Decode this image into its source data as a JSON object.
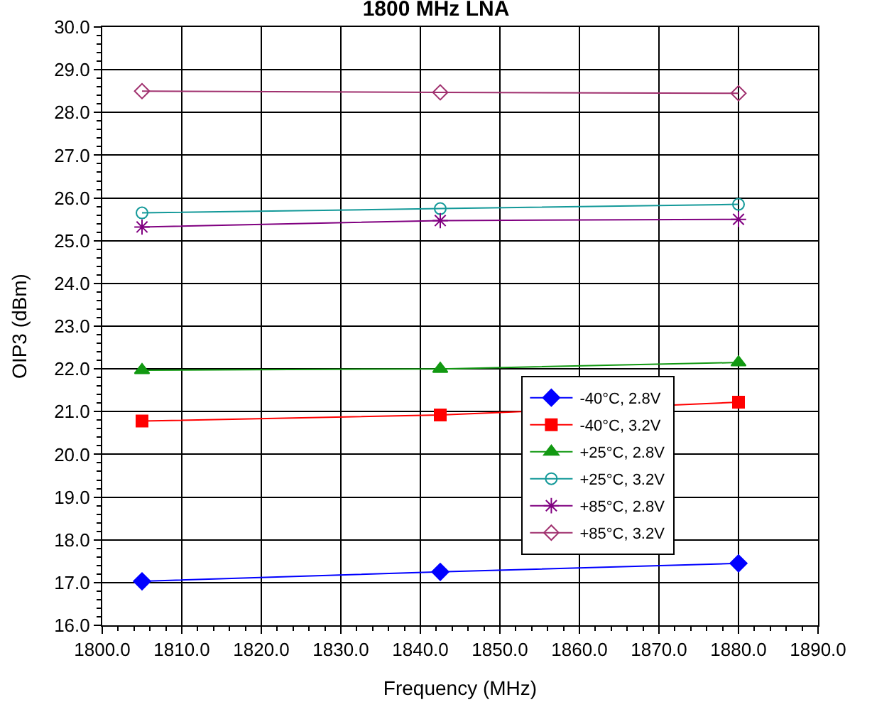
{
  "chart_data": {
    "type": "line",
    "title": "1800 MHz LNA",
    "xlabel": "Frequency (MHz)",
    "ylabel": "OIP3 (dBm)",
    "x": [
      1805,
      1842.5,
      1880
    ],
    "xlim": [
      1800,
      1890
    ],
    "xticks": [
      {
        "value": 1800,
        "label": "1800.0"
      },
      {
        "value": 1810,
        "label": "1810.0"
      },
      {
        "value": 1820,
        "label": "1820.0"
      },
      {
        "value": 1830,
        "label": "1830.0"
      },
      {
        "value": 1840,
        "label": "1840.0"
      },
      {
        "value": 1850,
        "label": "1850.0"
      },
      {
        "value": 1860,
        "label": "1860.0"
      },
      {
        "value": 1870,
        "label": "1870.0"
      },
      {
        "value": 1880,
        "label": "1880.0"
      },
      {
        "value": 1890,
        "label": "1890.0"
      }
    ],
    "ylim": [
      16,
      30
    ],
    "yticks": [
      {
        "value": 16,
        "label": "16.0"
      },
      {
        "value": 17,
        "label": "17.0"
      },
      {
        "value": 18,
        "label": "18.0"
      },
      {
        "value": 19,
        "label": "19.0"
      },
      {
        "value": 20,
        "label": "20.0"
      },
      {
        "value": 21,
        "label": "21.0"
      },
      {
        "value": 22,
        "label": "22.0"
      },
      {
        "value": 23,
        "label": "23.0"
      },
      {
        "value": 24,
        "label": "24.0"
      },
      {
        "value": 25,
        "label": "25.0"
      },
      {
        "value": 26,
        "label": "26.0"
      },
      {
        "value": 27,
        "label": "27.0"
      },
      {
        "value": 28,
        "label": "28.0"
      },
      {
        "value": 29,
        "label": "29.0"
      },
      {
        "value": 30,
        "label": "30.0"
      }
    ],
    "grid": true,
    "legend": "bottom right",
    "series": [
      {
        "name": "-40°C, 2.8V",
        "color": "#0000ff",
        "marker": "diamond",
        "values": [
          17.03,
          17.25,
          17.45
        ]
      },
      {
        "name": "-40°C, 3.2V",
        "color": "#ff0000",
        "marker": "square",
        "values": [
          20.78,
          20.92,
          21.22
        ]
      },
      {
        "name": "+25°C, 2.8V",
        "color": "#129912",
        "marker": "triangle",
        "values": [
          21.97,
          22.0,
          22.15
        ]
      },
      {
        "name": "+25°C, 3.2V",
        "color": "#139999",
        "marker": "circle-open",
        "values": [
          25.65,
          25.75,
          25.85
        ]
      },
      {
        "name": "+85°C, 2.8V",
        "color": "#800080",
        "marker": "cross",
        "values": [
          25.32,
          25.47,
          25.5
        ]
      },
      {
        "name": "+85°C, 3.2V",
        "color": "#a0306e",
        "marker": "diamond-open",
        "values": [
          28.5,
          28.47,
          28.45
        ]
      }
    ]
  }
}
